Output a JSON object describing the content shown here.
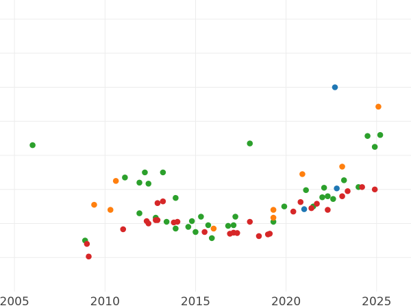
{
  "chart_data": {
    "type": "scatter",
    "title": "",
    "xlabel": "",
    "ylabel": "",
    "xlim": [
      2004.2,
      2026.9
    ],
    "ylim": [
      0,
      8
    ],
    "x_ticks": [
      2005,
      2010,
      2015,
      2020,
      2025
    ],
    "x_tick_labels": [
      "2005",
      "2010",
      "2015",
      "2020",
      "2025"
    ],
    "y_grid": [
      1,
      2,
      3,
      4,
      5,
      6,
      7,
      8
    ],
    "grid": true,
    "legend": "none",
    "series": [
      {
        "color": "#2ca02c",
        "points": [
          [
            2006.0,
            4.3
          ],
          [
            2008.9,
            1.5
          ],
          [
            2011.1,
            3.35
          ],
          [
            2011.9,
            3.2
          ],
          [
            2012.2,
            3.5
          ],
          [
            2012.4,
            3.17
          ],
          [
            2013.2,
            3.5
          ],
          [
            2011.9,
            2.3
          ],
          [
            2012.8,
            2.17
          ],
          [
            2013.4,
            2.05
          ],
          [
            2013.9,
            1.85
          ],
          [
            2013.9,
            2.75
          ],
          [
            2014.6,
            1.9
          ],
          [
            2014.8,
            2.07
          ],
          [
            2015.0,
            1.75
          ],
          [
            2015.3,
            2.2
          ],
          [
            2015.7,
            1.95
          ],
          [
            2015.9,
            1.57
          ],
          [
            2016.8,
            1.93
          ],
          [
            2017.1,
            1.95
          ],
          [
            2017.2,
            2.2
          ],
          [
            2018.0,
            4.35
          ],
          [
            2019.3,
            2.05
          ],
          [
            2019.9,
            2.5
          ],
          [
            2021.1,
            2.98
          ],
          [
            2021.5,
            2.5
          ],
          [
            2022.0,
            2.77
          ],
          [
            2022.1,
            3.05
          ],
          [
            2022.3,
            2.8
          ],
          [
            2022.6,
            2.72
          ],
          [
            2023.2,
            3.27
          ],
          [
            2024.0,
            3.07
          ],
          [
            2024.5,
            4.57
          ],
          [
            2024.9,
            4.25
          ],
          [
            2025.2,
            4.6
          ]
        ]
      },
      {
        "color": "#d62728",
        "points": [
          [
            2009.0,
            1.4
          ],
          [
            2009.1,
            1.03
          ],
          [
            2011.0,
            1.83
          ],
          [
            2012.3,
            2.07
          ],
          [
            2012.4,
            2.0
          ],
          [
            2012.8,
            2.1
          ],
          [
            2012.9,
            2.1
          ],
          [
            2012.9,
            2.6
          ],
          [
            2013.2,
            2.65
          ],
          [
            2013.8,
            2.03
          ],
          [
            2014.0,
            2.05
          ],
          [
            2015.5,
            1.75
          ],
          [
            2016.9,
            1.7
          ],
          [
            2017.1,
            1.73
          ],
          [
            2017.3,
            1.72
          ],
          [
            2018.0,
            2.05
          ],
          [
            2018.5,
            1.63
          ],
          [
            2019.0,
            1.68
          ],
          [
            2019.1,
            1.7
          ],
          [
            2020.4,
            2.35
          ],
          [
            2020.8,
            2.63
          ],
          [
            2021.4,
            2.45
          ],
          [
            2021.7,
            2.58
          ],
          [
            2022.3,
            2.4
          ],
          [
            2023.1,
            2.8
          ],
          [
            2023.4,
            2.95
          ],
          [
            2024.2,
            3.07
          ],
          [
            2024.9,
            3.0
          ]
        ]
      },
      {
        "color": "#ff7f0e",
        "points": [
          [
            2009.4,
            2.55
          ],
          [
            2010.3,
            2.4
          ],
          [
            2010.6,
            3.25
          ],
          [
            2016.0,
            1.85
          ],
          [
            2019.3,
            2.4
          ],
          [
            2019.3,
            2.17
          ],
          [
            2020.9,
            3.45
          ],
          [
            2023.1,
            3.67
          ],
          [
            2025.1,
            5.43
          ]
        ]
      },
      {
        "color": "#1f77b4",
        "points": [
          [
            2021.0,
            2.42
          ],
          [
            2022.7,
            6.0
          ],
          [
            2022.8,
            3.03
          ]
        ]
      }
    ]
  }
}
